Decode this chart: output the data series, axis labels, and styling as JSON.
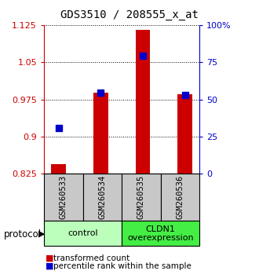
{
  "title": "GDS3510 / 208555_x_at",
  "samples": [
    "GSM260533",
    "GSM260534",
    "GSM260535",
    "GSM260536"
  ],
  "red_values": [
    0.845,
    0.988,
    1.115,
    0.985
  ],
  "blue_values": [
    0.918,
    0.988,
    1.063,
    0.984
  ],
  "ylim_left": [
    0.825,
    1.125
  ],
  "ylim_right": [
    0,
    100
  ],
  "yticks_left": [
    0.825,
    0.9,
    0.975,
    1.05,
    1.125
  ],
  "yticks_right": [
    0,
    25,
    50,
    75,
    100
  ],
  "groups": [
    {
      "label": "control",
      "samples": [
        0,
        1
      ],
      "color": "#bbffbb"
    },
    {
      "label": "CLDN1\noverexpression",
      "samples": [
        2,
        3
      ],
      "color": "#44ee44"
    }
  ],
  "bar_color": "#cc0000",
  "dot_color": "#0000cc",
  "bg_color": "#c8c8c8",
  "bar_width": 0.35,
  "dot_size": 28,
  "protocol_label": "protocol",
  "legend_red": "transformed count",
  "legend_blue": "percentile rank within the sample",
  "title_fontsize": 10,
  "tick_fontsize": 8,
  "sample_fontsize": 7.5,
  "group_fontsize": 8,
  "legend_fontsize": 7.5
}
